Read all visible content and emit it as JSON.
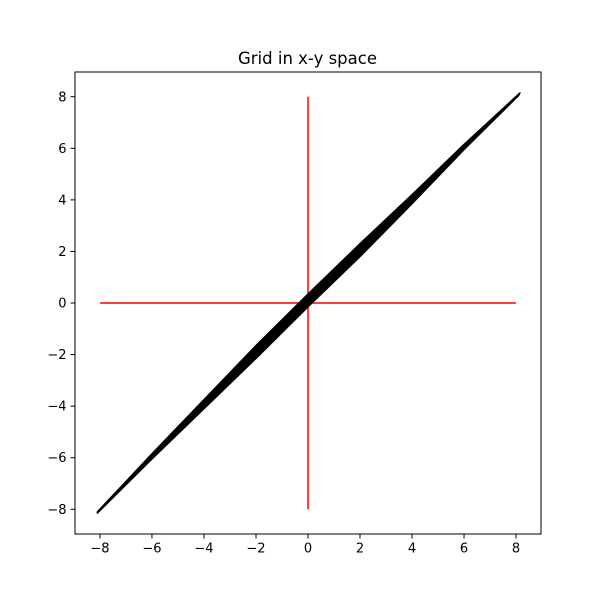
{
  "chart_data": {
    "type": "line",
    "title": "Grid in x-y space",
    "xlabel": "",
    "ylabel": "",
    "xlim": [
      -8.96,
      8.96
    ],
    "ylim": [
      -8.96,
      8.96
    ],
    "xticks": [
      -8,
      -6,
      -4,
      -2,
      0,
      2,
      4,
      6,
      8
    ],
    "yticks": [
      -8,
      -6,
      -4,
      -2,
      0,
      2,
      4,
      6,
      8
    ],
    "xtick_labels": [
      "−8",
      "−6",
      "−4",
      "−2",
      "0",
      "2",
      "4",
      "6",
      "8"
    ],
    "ytick_labels": [
      "−8",
      "−6",
      "−4",
      "−2",
      "0",
      "2",
      "4",
      "6",
      "8"
    ],
    "grid": false,
    "legend": "none",
    "series": [
      {
        "color": "#ff0000",
        "x": [
          -8,
          8
        ],
        "y": [
          0,
          0
        ]
      },
      {
        "color": "#ff0000",
        "x": [
          0,
          0
        ],
        "y": [
          -8,
          8
        ]
      },
      {
        "color": "#000000",
        "fill": true,
        "x": [
          -8.1,
          -6,
          -4,
          -2,
          0,
          2,
          4,
          6,
          8.15,
          8.1,
          6,
          4,
          2,
          0,
          -2,
          -4,
          -6,
          -8.1
        ],
        "y": [
          -8.1,
          -5.85,
          -3.75,
          -1.65,
          0.35,
          2.3,
          4.2,
          6.15,
          8.15,
          8.05,
          5.95,
          3.85,
          1.8,
          -0.15,
          -2.15,
          -4.1,
          -6.05,
          -8.15
        ]
      }
    ]
  }
}
